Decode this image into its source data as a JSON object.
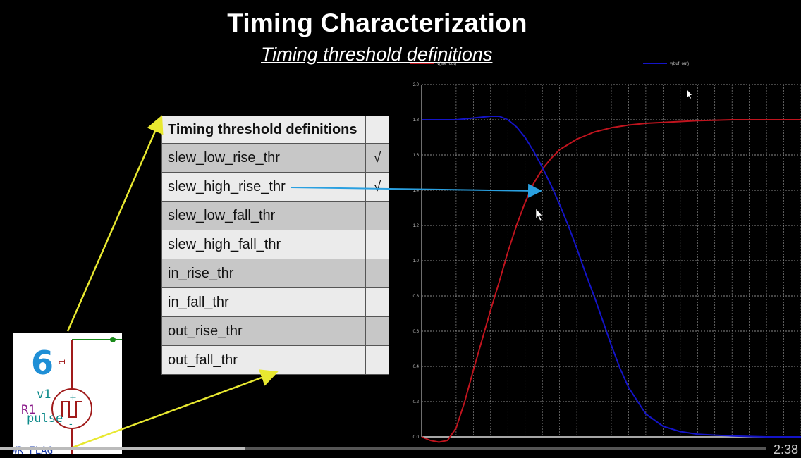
{
  "slide": {
    "title": "Timing Characterization",
    "subtitle": "Timing threshold definitions"
  },
  "table": {
    "header": "Timing threshold definitions",
    "rows": [
      {
        "name": "slew_low_rise_thr",
        "mark": "√"
      },
      {
        "name": "slew_high_rise_thr",
        "mark": "√"
      },
      {
        "name": "slew_low_fall_thr",
        "mark": ""
      },
      {
        "name": "slew_high_fall_thr",
        "mark": ""
      },
      {
        "name": "in_rise_thr",
        "mark": ""
      },
      {
        "name": "in_fall_thr",
        "mark": ""
      },
      {
        "name": "out_rise_thr",
        "mark": ""
      },
      {
        "name": "out_fall_thr",
        "mark": ""
      }
    ]
  },
  "schematic": {
    "number": "6",
    "source_name": "v1",
    "resistor": "R1",
    "source_type": "pulse",
    "flag": "WR_FLAG",
    "pin_label": "1"
  },
  "plot": {
    "legend": [
      {
        "name": "v(sre_out)",
        "color": "#c0141e"
      },
      {
        "name": "v(buf_out)",
        "color": "#1414c8"
      }
    ],
    "y_ticks": [
      "2.0",
      "1.8",
      "1.6",
      "1.4",
      "1.2",
      "1.0",
      "0.8",
      "0.6",
      "0.4",
      "0.2",
      "0.0"
    ]
  },
  "player": {
    "time": "2:38",
    "progress": 0.32
  },
  "chart_data": {
    "type": "line",
    "title": "",
    "xlabel": "",
    "ylabel": "",
    "ylim": [
      0,
      2.0
    ],
    "xlim": [
      0,
      22
    ],
    "grid": true,
    "legend": "top",
    "series": [
      {
        "name": "v(sre_out)",
        "color": "#c0141e",
        "x": [
          0,
          0.5,
          1,
          1.5,
          2,
          2.5,
          3,
          3.5,
          4,
          4.5,
          5,
          5.5,
          6,
          6.5,
          7,
          7.5,
          8,
          9,
          10,
          11,
          12,
          13,
          14,
          15,
          16,
          18,
          20,
          22
        ],
        "y": [
          0.0,
          -0.02,
          -0.03,
          -0.02,
          0.05,
          0.2,
          0.38,
          0.55,
          0.72,
          0.88,
          1.05,
          1.2,
          1.33,
          1.44,
          1.52,
          1.58,
          1.63,
          1.69,
          1.73,
          1.755,
          1.77,
          1.78,
          1.785,
          1.79,
          1.795,
          1.8,
          1.8,
          1.8
        ]
      },
      {
        "name": "v(buf_out)",
        "color": "#1414c8",
        "x": [
          0,
          1,
          2,
          3,
          4,
          4.5,
          5,
          5.5,
          6,
          6.5,
          7,
          7.5,
          8,
          8.5,
          9,
          9.5,
          10,
          10.5,
          11,
          11.5,
          12,
          13,
          14,
          15,
          16,
          18,
          20,
          22
        ],
        "y": [
          1.8,
          1.8,
          1.8,
          1.81,
          1.82,
          1.82,
          1.8,
          1.76,
          1.7,
          1.62,
          1.53,
          1.43,
          1.32,
          1.2,
          1.07,
          0.93,
          0.8,
          0.66,
          0.52,
          0.39,
          0.28,
          0.13,
          0.06,
          0.03,
          0.015,
          0.005,
          0.0,
          0.0
        ]
      }
    ]
  }
}
